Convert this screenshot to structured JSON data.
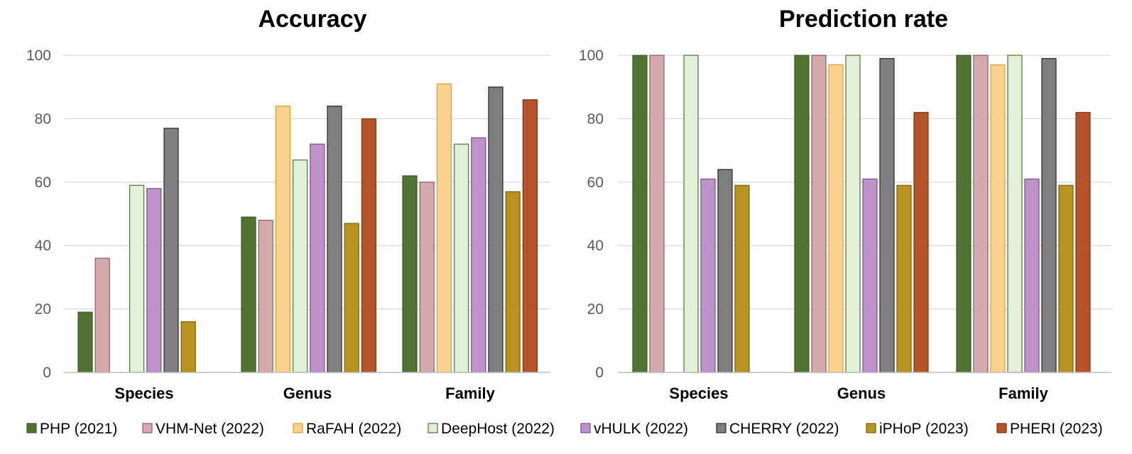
{
  "legend": [
    {
      "name": "PHP (2021)",
      "fill": "#4e7332",
      "stroke": "#3a5a24"
    },
    {
      "name": "VHM-Net (2022)",
      "fill": "#d4aaac",
      "stroke": "#8a5a60"
    },
    {
      "name": "RaFAH (2022)",
      "fill": "#f8d28e",
      "stroke": "#e39b2e"
    },
    {
      "name": "DeepHost (2022)",
      "fill": "#e2efd9",
      "stroke": "#4e7332"
    },
    {
      "name": "vHULK (2022)",
      "fill": "#c092cc",
      "stroke": "#7a4e8a"
    },
    {
      "name": "CHERRY (2022)",
      "fill": "#7f7f7f",
      "stroke": "#262626"
    },
    {
      "name": "iPHoP (2023)",
      "fill": "#b8941f",
      "stroke": "#7a6010"
    },
    {
      "name": "PHERI (2023)",
      "fill": "#b65328",
      "stroke": "#7a3512"
    }
  ],
  "chart_data": [
    {
      "type": "bar",
      "title": "Accuracy",
      "categories": [
        "Species",
        "Genus",
        "Family"
      ],
      "ylim": [
        0,
        100
      ],
      "yticks": [
        "0",
        "20",
        "40",
        "60",
        "80",
        "100"
      ],
      "grid": true,
      "legend_placement": "bottom",
      "series": [
        {
          "name": "PHP (2021)",
          "values": [
            19,
            49,
            62
          ]
        },
        {
          "name": "VHM-Net (2022)",
          "values": [
            36,
            48,
            60
          ]
        },
        {
          "name": "RaFAH (2022)",
          "values": [
            0,
            84,
            91
          ]
        },
        {
          "name": "DeepHost (2022)",
          "values": [
            59,
            67,
            72
          ]
        },
        {
          "name": "vHULK (2022)",
          "values": [
            58,
            72,
            74
          ]
        },
        {
          "name": "CHERRY (2022)",
          "values": [
            77,
            84,
            90
          ]
        },
        {
          "name": "iPHoP (2023)",
          "values": [
            16,
            47,
            57
          ]
        },
        {
          "name": "PHERI (2023)",
          "values": [
            0,
            80,
            86
          ]
        }
      ]
    },
    {
      "type": "bar",
      "title": "Prediction rate",
      "categories": [
        "Species",
        "Genus",
        "Family"
      ],
      "ylim": [
        0,
        100
      ],
      "yticks": [
        "0",
        "20",
        "40",
        "60",
        "80",
        "100"
      ],
      "grid": true,
      "legend_placement": "bottom",
      "series": [
        {
          "name": "PHP (2021)",
          "values": [
            100,
            100,
            100
          ]
        },
        {
          "name": "VHM-Net (2022)",
          "values": [
            100,
            100,
            100
          ]
        },
        {
          "name": "RaFAH (2022)",
          "values": [
            0,
            97,
            97
          ]
        },
        {
          "name": "DeepHost (2022)",
          "values": [
            100,
            100,
            100
          ]
        },
        {
          "name": "vHULK (2022)",
          "values": [
            61,
            61,
            61
          ]
        },
        {
          "name": "CHERRY (2022)",
          "values": [
            64,
            99,
            99
          ]
        },
        {
          "name": "iPHoP (2023)",
          "values": [
            59,
            59,
            59
          ]
        },
        {
          "name": "PHERI (2023)",
          "values": [
            0,
            82,
            82
          ]
        }
      ]
    }
  ]
}
